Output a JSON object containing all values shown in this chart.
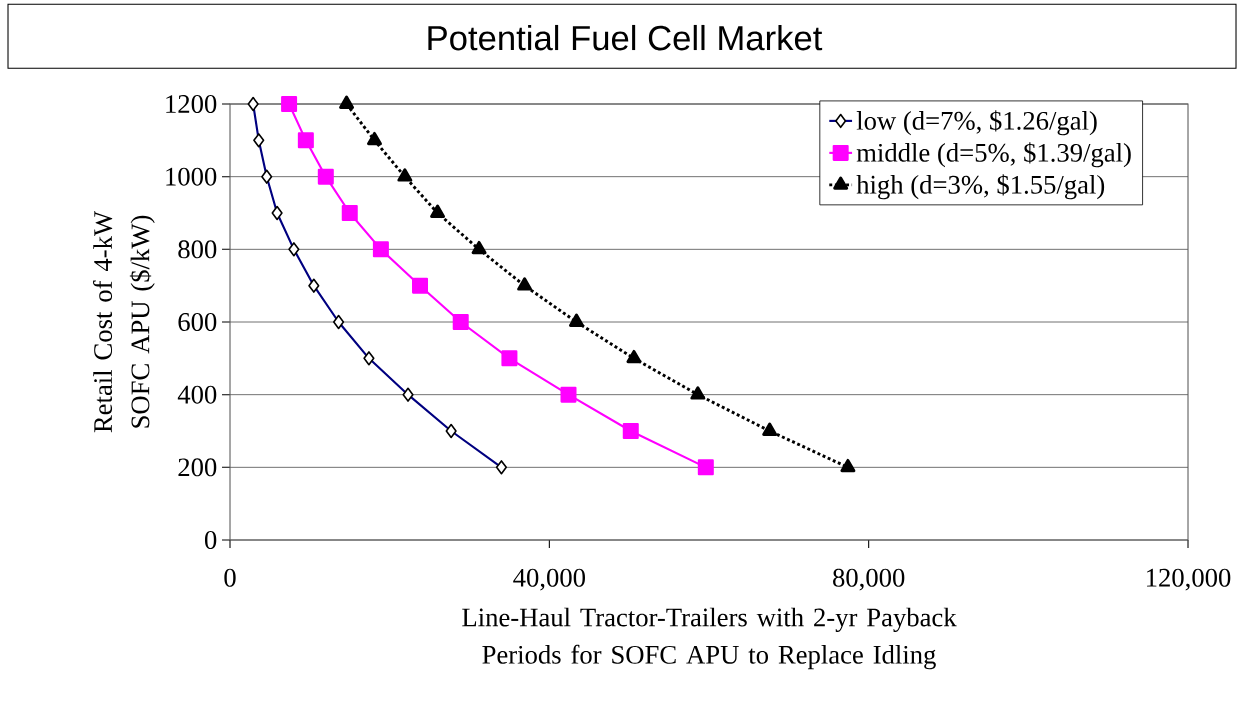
{
  "chart_data": {
    "type": "line",
    "title": "Potential Fuel Cell Market",
    "xlabel": "Line-Haul Tractor-Trailers with 2-yr Payback Periods for SOFC APU to Replace Idling",
    "ylabel": "Retail Cost of 4-kW SOFC APU ($/kW)",
    "xlim": [
      0,
      120000
    ],
    "ylim": [
      0,
      1200
    ],
    "xticks": [
      0,
      {
        "value": 40000,
        "label": "40,000"
      },
      {
        "value": 80000,
        "label": "80,000"
      },
      {
        "value": 120000,
        "label": "120,000"
      }
    ],
    "yticks": [
      0,
      200,
      400,
      600,
      800,
      1000,
      1200
    ],
    "grid": "y",
    "legend": "top right",
    "series": [
      {
        "name": "low (d=7%, $1.26/gal)",
        "color": "#000080",
        "marker": "diamond",
        "line_style": "solid",
        "x": [
          2900,
          3600,
          4600,
          5900,
          8000,
          10500,
          13600,
          17400,
          22300,
          27700,
          34000
        ],
        "values": [
          1200,
          1100,
          1000,
          900,
          800,
          700,
          600,
          500,
          400,
          300,
          200
        ]
      },
      {
        "name": "middle (d=5%, $1.39/gal)",
        "color": "#ff00ff",
        "marker": "square",
        "line_style": "solid",
        "x": [
          7400,
          9500,
          12000,
          15000,
          18900,
          23800,
          28900,
          35000,
          42400,
          50200,
          59600
        ],
        "values": [
          1200,
          1100,
          1000,
          900,
          800,
          700,
          600,
          500,
          400,
          300,
          200
        ]
      },
      {
        "name": "high (d=3%, $1.55/gal)",
        "color": "#000000",
        "marker": "triangle",
        "line_style": "dotted",
        "x": [
          14600,
          18100,
          21900,
          26000,
          31200,
          36900,
          43400,
          50600,
          58600,
          67600,
          77400
        ],
        "values": [
          1200,
          1100,
          1000,
          900,
          800,
          700,
          600,
          500,
          400,
          300,
          200
        ]
      }
    ]
  }
}
